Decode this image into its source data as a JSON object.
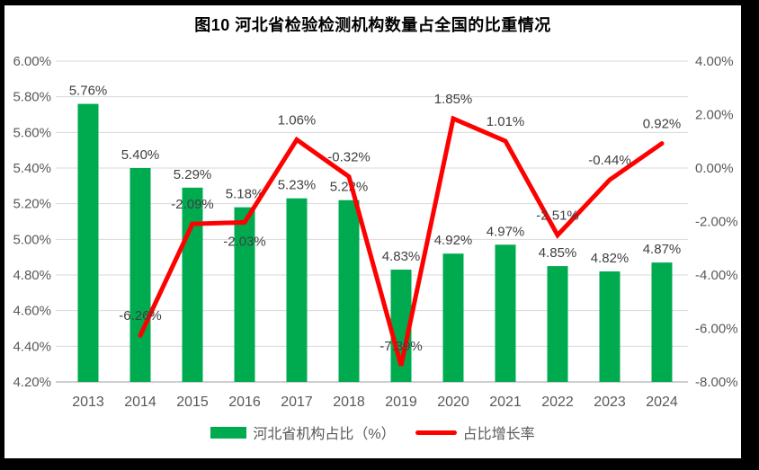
{
  "title": "图10  河北省检验检测机构数量占全国的比重情况",
  "legend": [
    {
      "label": "河北省机构占比（%）"
    },
    {
      "label": "占比增长率"
    }
  ],
  "chart_data": {
    "type": "combo-bar-line",
    "title": "图10  河北省检验检测机构数量占全国的比重情况",
    "categories": [
      "2013",
      "2014",
      "2015",
      "2016",
      "2017",
      "2018",
      "2019",
      "2020",
      "2021",
      "2022",
      "2023",
      "2024"
    ],
    "series": [
      {
        "name": "河北省机构占比（%）",
        "type": "bar",
        "axis": "left",
        "color": "#00AB50",
        "values": [
          5.76,
          5.4,
          5.29,
          5.18,
          5.23,
          5.22,
          4.83,
          4.92,
          4.97,
          4.85,
          4.82,
          4.87
        ],
        "labels": [
          "5.76%",
          "5.40%",
          "5.29%",
          "5.18%",
          "5.23%",
          "5.22%",
          "4.83%",
          "4.92%",
          "4.97%",
          "4.85%",
          "4.82%",
          "4.87%"
        ]
      },
      {
        "name": "占比增长率",
        "type": "line",
        "axis": "right",
        "color": "#FF0000",
        "values": [
          null,
          -6.26,
          -2.09,
          -2.03,
          1.06,
          -0.32,
          -7.39,
          1.85,
          1.01,
          -2.51,
          -0.44,
          0.92
        ],
        "labels": [
          "",
          "-6.26%",
          "-2.09%",
          "-2.03%",
          "1.06%",
          "-0.32%",
          "-7.39%",
          "1.85%",
          "1.01%",
          "-2.51%",
          "-0.44%",
          "0.92%"
        ],
        "label_below_indices": [
          3
        ]
      }
    ],
    "left_axis": {
      "min": 4.2,
      "max": 6.0,
      "ticks": [
        "6.00%",
        "5.80%",
        "5.60%",
        "5.40%",
        "5.20%",
        "5.00%",
        "4.80%",
        "4.60%",
        "4.40%",
        "4.20%"
      ]
    },
    "right_axis": {
      "min": -8.0,
      "max": 4.0,
      "ticks": [
        "4.00%",
        "2.00%",
        "0.00%",
        "-2.00%",
        "-4.00%",
        "-6.00%",
        "-8.00%"
      ]
    },
    "grid": true,
    "legend_position": "bottom",
    "colors": {
      "grid": "#D9D9D9",
      "axis_line": "#BFBFBF",
      "axis_text": "#595959",
      "data_label": "#404040",
      "title_text": "#000000"
    }
  }
}
